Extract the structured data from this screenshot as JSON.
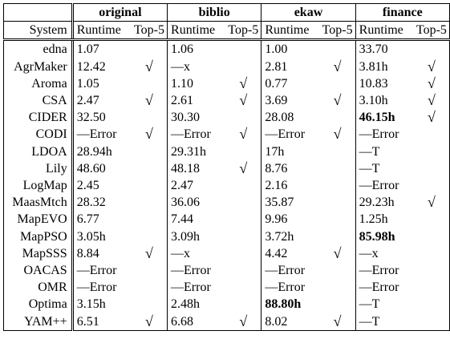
{
  "header": {
    "system_label": "System",
    "runtime_label": "Runtime",
    "top5_label": "Top-5",
    "datasets": [
      "original",
      "biblio",
      "ekaw",
      "finance"
    ]
  },
  "rows": [
    {
      "system": "edna",
      "cells": [
        {
          "rt": "1.07",
          "ok": false
        },
        {
          "rt": "1.06",
          "ok": false
        },
        {
          "rt": "1.00",
          "ok": false
        },
        {
          "rt": "33.70",
          "ok": false
        }
      ]
    },
    {
      "system": "AgrMaker",
      "cells": [
        {
          "rt": "12.42",
          "ok": true
        },
        {
          "rt": "—x",
          "ok": false
        },
        {
          "rt": "2.81",
          "ok": true
        },
        {
          "rt": "3.81h",
          "ok": true
        }
      ]
    },
    {
      "system": "Aroma",
      "cells": [
        {
          "rt": "1.05",
          "ok": false
        },
        {
          "rt": "1.10",
          "ok": true
        },
        {
          "rt": "0.77",
          "ok": false
        },
        {
          "rt": "10.83",
          "ok": true
        }
      ]
    },
    {
      "system": "CSA",
      "cells": [
        {
          "rt": "2.47",
          "ok": true
        },
        {
          "rt": "2.61",
          "ok": true
        },
        {
          "rt": "3.69",
          "ok": true
        },
        {
          "rt": "3.10h",
          "ok": true
        }
      ]
    },
    {
      "system": "CIDER",
      "cells": [
        {
          "rt": "32.50",
          "ok": false
        },
        {
          "rt": "30.30",
          "ok": false
        },
        {
          "rt": "28.08",
          "ok": false
        },
        {
          "rt": "46.15h",
          "ok": true,
          "bold": true
        }
      ]
    },
    {
      "system": "CODI",
      "cells": [
        {
          "rt": "—Error",
          "ok": true
        },
        {
          "rt": "—Error",
          "ok": true
        },
        {
          "rt": "—Error",
          "ok": true
        },
        {
          "rt": "—Error",
          "ok": false
        }
      ]
    },
    {
      "system": "LDOA",
      "cells": [
        {
          "rt": "28.94h",
          "ok": false
        },
        {
          "rt": "29.31h",
          "ok": false
        },
        {
          "rt": "17h",
          "ok": false
        },
        {
          "rt": "—T",
          "ok": false
        }
      ]
    },
    {
      "system": "Lily",
      "cells": [
        {
          "rt": "48.60",
          "ok": false
        },
        {
          "rt": "48.18",
          "ok": true
        },
        {
          "rt": "8.76",
          "ok": false
        },
        {
          "rt": "—T",
          "ok": false
        }
      ]
    },
    {
      "system": "LogMap",
      "cells": [
        {
          "rt": "2.45",
          "ok": false
        },
        {
          "rt": "2.47",
          "ok": false
        },
        {
          "rt": "2.16",
          "ok": false
        },
        {
          "rt": "—Error",
          "ok": false
        }
      ]
    },
    {
      "system": "MaasMtch",
      "cells": [
        {
          "rt": "28.32",
          "ok": false
        },
        {
          "rt": "36.06",
          "ok": false
        },
        {
          "rt": "35.87",
          "ok": false
        },
        {
          "rt": "29.23h",
          "ok": true
        }
      ]
    },
    {
      "system": "MapEVO",
      "cells": [
        {
          "rt": "6.77",
          "ok": false
        },
        {
          "rt": "7.44",
          "ok": false
        },
        {
          "rt": "9.96",
          "ok": false
        },
        {
          "rt": "1.25h",
          "ok": false
        }
      ]
    },
    {
      "system": "MapPSO",
      "cells": [
        {
          "rt": "3.05h",
          "ok": false
        },
        {
          "rt": "3.09h",
          "ok": false
        },
        {
          "rt": "3.72h",
          "ok": false
        },
        {
          "rt": "85.98h",
          "ok": false,
          "bold": true
        }
      ]
    },
    {
      "system": "MapSSS",
      "cells": [
        {
          "rt": "8.84",
          "ok": true
        },
        {
          "rt": "—x",
          "ok": false
        },
        {
          "rt": "4.42",
          "ok": true
        },
        {
          "rt": "—x",
          "ok": false
        }
      ]
    },
    {
      "system": "OACAS",
      "cells": [
        {
          "rt": "—Error",
          "ok": false
        },
        {
          "rt": "—Error",
          "ok": false
        },
        {
          "rt": "—Error",
          "ok": false
        },
        {
          "rt": "—Error",
          "ok": false
        }
      ]
    },
    {
      "system": "OMR",
      "cells": [
        {
          "rt": "—Error",
          "ok": false
        },
        {
          "rt": "—Error",
          "ok": false
        },
        {
          "rt": "—Error",
          "ok": false
        },
        {
          "rt": "—Error",
          "ok": false
        }
      ]
    },
    {
      "system": "Optima",
      "cells": [
        {
          "rt": "3.15h",
          "ok": false
        },
        {
          "rt": "2.48h",
          "ok": false
        },
        {
          "rt": "88.80h",
          "ok": false,
          "bold": true
        },
        {
          "rt": "—T",
          "ok": false
        }
      ]
    },
    {
      "system": "YAM++",
      "cells": [
        {
          "rt": "6.51",
          "ok": true
        },
        {
          "rt": "6.68",
          "ok": true
        },
        {
          "rt": "8.02",
          "ok": true
        },
        {
          "rt": "—T",
          "ok": false
        }
      ]
    }
  ],
  "check_glyph": "√"
}
